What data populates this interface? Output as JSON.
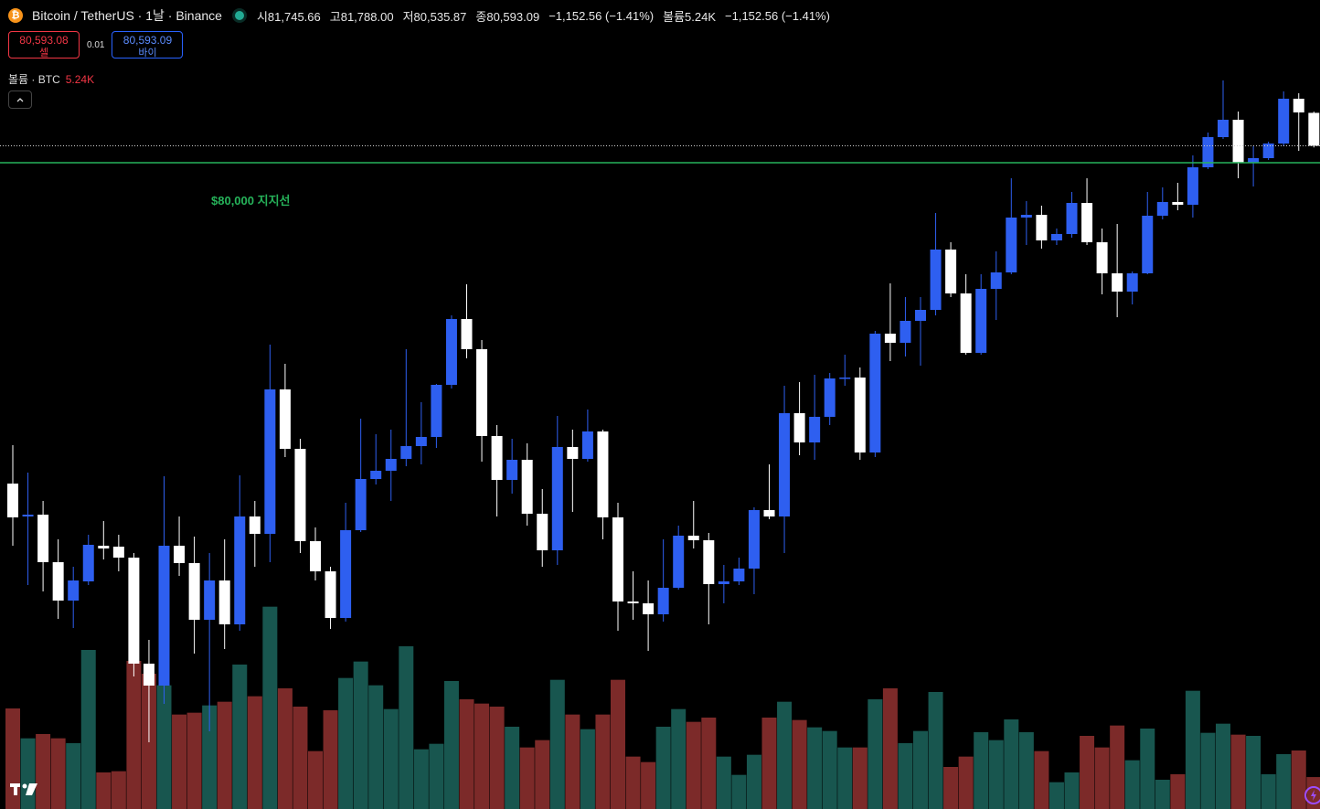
{
  "header": {
    "symbol": "Bitcoin / TetherUS · 1날 · Binance",
    "ohlc": [
      {
        "label": "시",
        "value": "81,745.66"
      },
      {
        "label": "고",
        "value": "81,788.00"
      },
      {
        "label": "저",
        "value": "80,535.87"
      },
      {
        "label": "종",
        "value": "80,593.09"
      }
    ],
    "change": "−1,152.56 (−1.41%)",
    "volume_label": "볼륨",
    "volume_value": "5.24K",
    "volume_change": "−1,152.56 (−1.41%)"
  },
  "trade": {
    "sell_price": "80,593.08",
    "sell_label": "셀",
    "spread": "0.01",
    "buy_price": "80,593.09",
    "buy_label": "바이"
  },
  "volume_legend": {
    "label": "볼륨 · BTC",
    "value": "5.24K"
  },
  "chart_data": {
    "type": "candlestick",
    "up_color": "#2e5ff0",
    "down_color": "#ffffff",
    "volume_up_color": "#18564f",
    "volume_down_color": "#7c2a29",
    "ylim": [
      57376,
      85696
    ],
    "volume_ylim": [
      0,
      132750
    ],
    "support_line": {
      "value": 80000,
      "label": "$80,000 지지선",
      "color": "#26b35a"
    },
    "open": [
      68768,
      67616,
      67680,
      66016,
      64672,
      65344,
      66592,
      66560,
      66176,
      62464,
      61696,
      66592,
      65984,
      64000,
      65376,
      63840,
      67616,
      67008,
      72064,
      69984,
      66752,
      65696,
      64064,
      67136,
      68928,
      69216,
      69632,
      70080,
      70400,
      72224,
      74528,
      73472,
      70432,
      68896,
      69600,
      67712,
      66432,
      70048,
      69632,
      70592,
      67584,
      64640,
      64576,
      64192,
      65120,
      66944,
      66784,
      65248,
      65344,
      65792,
      67840,
      67616,
      71232,
      70208,
      71104,
      72448,
      72480,
      69856,
      74016,
      73696,
      74464,
      74848,
      76960,
      75424,
      73344,
      75584,
      76160,
      78080,
      78176,
      77280,
      77504,
      78592,
      77216,
      76128,
      75488,
      76128,
      78144,
      78624,
      78528,
      79840,
      80896,
      81504,
      80000,
      80160,
      80672,
      82240,
      81745.66
    ],
    "high": [
      70112,
      69152,
      68160,
      66816,
      65856,
      66976,
      67456,
      66976,
      66336,
      63296,
      69024,
      67616,
      66912,
      66336,
      66816,
      69056,
      68160,
      73632,
      72960,
      70336,
      67232,
      65856,
      68096,
      71040,
      70496,
      70656,
      73472,
      71616,
      72256,
      74656,
      75744,
      73792,
      70816,
      70336,
      70176,
      68576,
      71136,
      70656,
      71360,
      70656,
      68096,
      65696,
      65376,
      66816,
      67296,
      68160,
      67040,
      65920,
      66176,
      67936,
      69440,
      72192,
      72320,
      72576,
      72640,
      73280,
      72832,
      74112,
      75776,
      75296,
      75296,
      78240,
      77216,
      76096,
      76096,
      76896,
      79456,
      78656,
      78496,
      77696,
      78976,
      79456,
      77696,
      77856,
      76192,
      78976,
      79136,
      79296,
      80256,
      81056,
      82880,
      81792,
      80576,
      80736,
      82496,
      82432,
      81788
    ],
    "low": [
      66592,
      65216,
      64992,
      64032,
      63712,
      65216,
      66112,
      65696,
      62016,
      59712,
      61056,
      65536,
      62816,
      60096,
      62976,
      63616,
      65856,
      66016,
      69696,
      66336,
      65376,
      63680,
      63936,
      67072,
      68736,
      68160,
      69376,
      69440,
      70016,
      72096,
      73152,
      69536,
      67616,
      68416,
      67296,
      65856,
      65920,
      67776,
      69536,
      66816,
      63616,
      64000,
      62912,
      63936,
      65056,
      66496,
      63840,
      64576,
      65216,
      64896,
      67520,
      66336,
      69760,
      69600,
      70816,
      72192,
      69600,
      69696,
      73056,
      73216,
      72896,
      74656,
      75296,
      73280,
      73280,
      74496,
      76096,
      77120,
      76992,
      77120,
      77376,
      77120,
      75392,
      74592,
      75040,
      76096,
      78016,
      78336,
      78080,
      79776,
      80832,
      79456,
      79168,
      80096,
      80576,
      80416,
      80535.87
    ],
    "close": [
      67584,
      67680,
      66016,
      64672,
      65376,
      66624,
      66496,
      66176,
      62464,
      61696,
      66592,
      65984,
      64000,
      65376,
      63840,
      67616,
      67008,
      72064,
      69984,
      66752,
      65696,
      64064,
      67136,
      68928,
      69216,
      69632,
      70080,
      70400,
      72224,
      74528,
      73472,
      70432,
      68896,
      69600,
      67712,
      66432,
      70048,
      69632,
      70592,
      67584,
      64640,
      64576,
      64192,
      65120,
      66944,
      66784,
      65248,
      65344,
      65792,
      67840,
      67616,
      71232,
      70208,
      71104,
      72448,
      72480,
      69856,
      74016,
      73696,
      74464,
      74848,
      76960,
      75424,
      73344,
      75584,
      76160,
      78080,
      78176,
      77280,
      77504,
      78592,
      77216,
      76128,
      75488,
      76128,
      78144,
      78624,
      78528,
      79840,
      80896,
      81504,
      80000,
      80160,
      80672,
      82240,
      81760,
      80593.09
    ],
    "volume": [
      16500,
      11600,
      12300,
      11600,
      10800,
      26100,
      6000,
      6200,
      24300,
      22200,
      20300,
      15500,
      15800,
      17000,
      17600,
      23700,
      18500,
      33200,
      19800,
      16800,
      9500,
      16200,
      21500,
      24200,
      20300,
      16400,
      26700,
      9800,
      10700,
      21000,
      18000,
      17300,
      16800,
      13500,
      10100,
      11300,
      21200,
      15500,
      13100,
      15500,
      21200,
      8600,
      7700,
      13500,
      16400,
      14300,
      15000,
      8600,
      5600,
      8900,
      15000,
      17600,
      14600,
      13400,
      12800,
      10100,
      10100,
      18000,
      19800,
      10800,
      12800,
      19200,
      6900,
      8600,
      12600,
      11300,
      14700,
      12600,
      9500,
      4400,
      6000,
      12000,
      10100,
      13700,
      8000,
      13200,
      4800,
      5700,
      19400,
      12500,
      14000,
      12200,
      12000,
      5700,
      9000,
      9600,
      5240
    ]
  }
}
